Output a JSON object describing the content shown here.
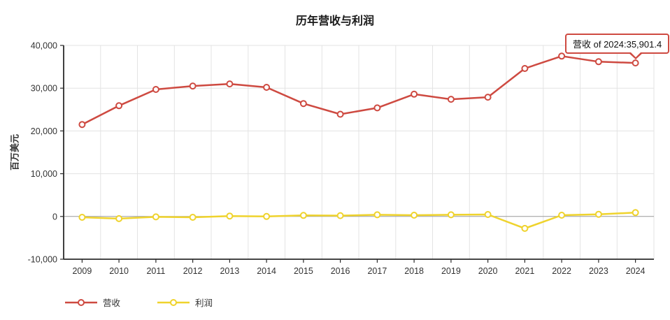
{
  "tooltip": {
    "text": "营收 of 2024:35,901.4"
  },
  "chart_data": {
    "type": "line",
    "title": "历年营收与利润",
    "xlabel": "",
    "ylabel": "百万美元",
    "categories": [
      "2009",
      "2010",
      "2011",
      "2012",
      "2013",
      "2014",
      "2015",
      "2016",
      "2017",
      "2018",
      "2019",
      "2020",
      "2021",
      "2022",
      "2023",
      "2024"
    ],
    "series": [
      {
        "name": "营收",
        "color": "#ce4a41",
        "values": [
          21500,
          25900,
          29700,
          30500,
          31000,
          30200,
          26400,
          23900,
          25400,
          28600,
          27400,
          27900,
          34600,
          37500,
          36200,
          35901.4
        ]
      },
      {
        "name": "利润",
        "color": "#efd32d",
        "values": [
          -200,
          -500,
          -100,
          -200,
          100,
          0,
          250,
          200,
          400,
          300,
          400,
          450,
          -2800,
          300,
          500,
          900
        ]
      }
    ],
    "ylim": [
      -10000,
      40000
    ],
    "yticks": [
      {
        "value": 40000,
        "label": "40,000"
      },
      {
        "value": 30000,
        "label": "30,000"
      },
      {
        "value": 20000,
        "label": "20,000"
      },
      {
        "value": 10000,
        "label": "10,000"
      },
      {
        "value": 0,
        "label": "0"
      },
      {
        "value": -10000,
        "label": "-10,000"
      }
    ],
    "grid": true,
    "legend_position": "bottom-left",
    "colors": {
      "revenue": "#ce4a41",
      "profit": "#efd32d",
      "grid": "#e3e3e3",
      "zero_line": "#999999",
      "axis": "#2b2b2b",
      "tooltip_border": "#ce4a41",
      "marker_fill": "#ffffff"
    }
  }
}
